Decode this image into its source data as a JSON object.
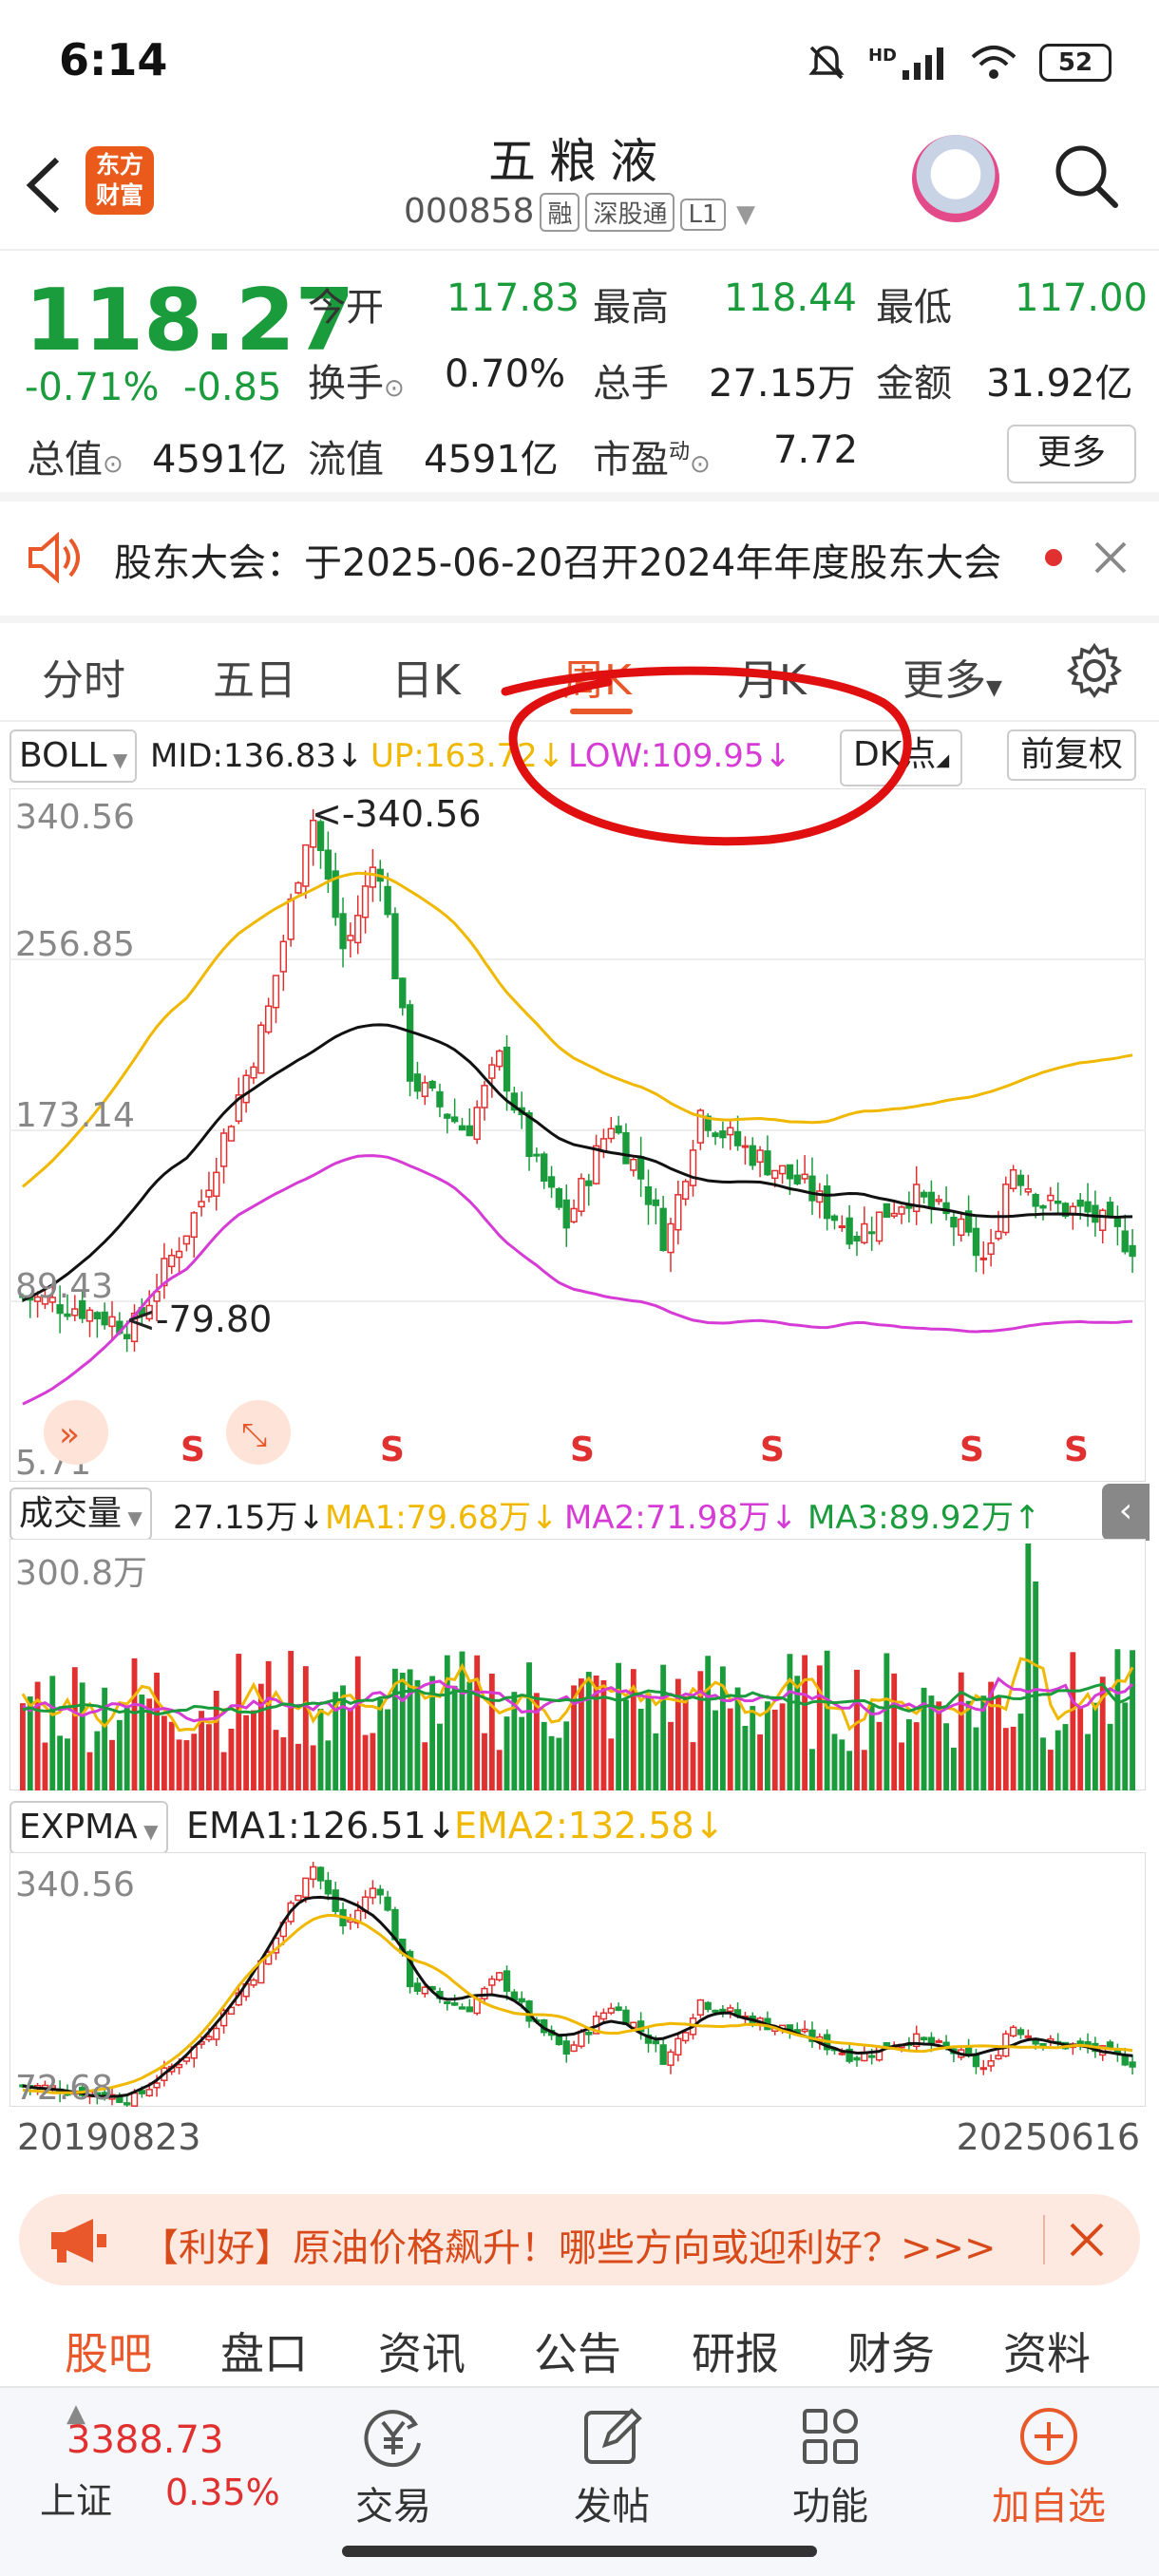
{
  "status_bar": {
    "time": "6:14",
    "battery": "52",
    "network": "HD"
  },
  "header": {
    "logo_line1": "东方",
    "logo_line2": "财富",
    "stock_name": "五粮液",
    "stock_code": "000858",
    "tags": [
      "融",
      "深股通",
      "L1"
    ]
  },
  "quote": {
    "price": "118.27",
    "change_pct": "-0.71%",
    "change_abs": "-0.85",
    "open_label": "今开",
    "open": "117.83",
    "high_label": "最高",
    "high": "118.44",
    "low_label": "最低",
    "low": "117.00",
    "turnover_label": "换手",
    "turnover": "0.70%",
    "volume_label": "总手",
    "volume": "27.15万",
    "amount_label": "金额",
    "amount": "31.92亿",
    "mktcap_label": "总值",
    "mktcap": "4591亿",
    "float_label": "流值",
    "float_cap": "4591亿",
    "pe_label": "市盈",
    "pe_sup": "动",
    "pe": "7.72",
    "more": "更多"
  },
  "notice": {
    "text": "股东大会：于2025-06-20召开2024年年度股东大会"
  },
  "tabs": [
    "分时",
    "五日",
    "日K",
    "周K",
    "月K",
    "更多"
  ],
  "active_tab": 3,
  "boll": {
    "name": "BOLL",
    "mid": "MID:136.83↓",
    "up": "UP:163.72↓",
    "low": "LOW:109.95↓",
    "dk": "DK点",
    "fq": "前复权"
  },
  "main_axis": {
    "y_top": "340.56",
    "y2": "256.85",
    "y3": "173.14",
    "y4": "89.43",
    "y_bottom": "5.71",
    "max_label": "<-340.56",
    "min_label": "<-79.80",
    "signal": "S"
  },
  "volume": {
    "name": "成交量",
    "value": "27.15万↓",
    "ma1": "MA1:79.68万↓",
    "ma2": "MA2:71.98万↓",
    "ma3": "MA3:89.92万↑",
    "y_top": "300.8万"
  },
  "expma": {
    "name": "EXPMA",
    "ema1": "EMA1:126.51↓",
    "ema2": "EMA2:132.58↓",
    "y_top": "340.56",
    "y_bottom": "72.68"
  },
  "dates": {
    "start": "20190823",
    "end": "20250616"
  },
  "banner": {
    "text": "【利好】原油价格飙升！哪些方向或迎利好？>>>"
  },
  "subtabs": [
    "股吧",
    "盘口",
    "资讯",
    "公告",
    "研报",
    "财务",
    "资料"
  ],
  "bottom_nav": {
    "index_value": "3388.73",
    "index_name": "上证",
    "index_change": "0.35%",
    "items": [
      "交易",
      "发帖",
      "功能",
      "加自选"
    ]
  },
  "colors": {
    "up": "#e03030",
    "down": "#1a9b3c",
    "accent": "#e8582a",
    "boll_up": "#f0b800",
    "boll_low": "#d63bd6",
    "mid": "#111111"
  }
}
